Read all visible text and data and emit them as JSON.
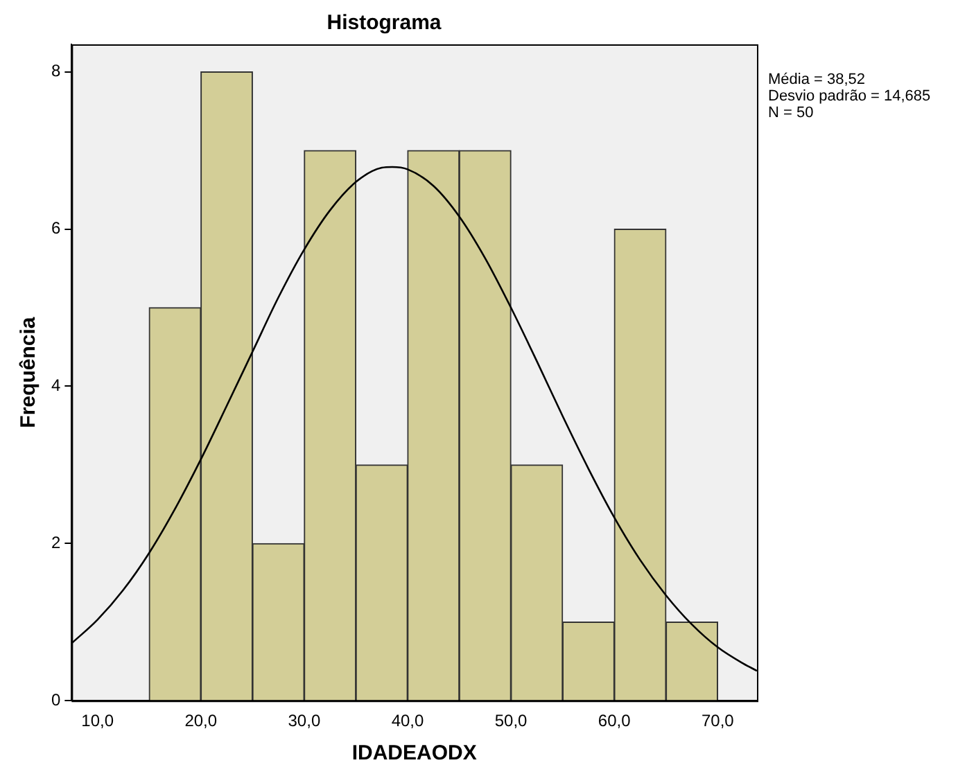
{
  "chart_data": {
    "type": "histogram",
    "title": "Histograma",
    "xlabel": "IDADEAODX",
    "ylabel": "Frequência",
    "bins": [
      15,
      20,
      25,
      30,
      35,
      40,
      45,
      50,
      55,
      60,
      65,
      70
    ],
    "series": [
      {
        "type": "histogram",
        "color": "#d3ce97",
        "values": [
          5,
          8,
          2,
          7,
          3,
          7,
          7,
          3,
          1,
          6,
          1
        ]
      },
      {
        "type": "line",
        "color": "#000000",
        "x": [
          7.5,
          10,
          12.5,
          15,
          17.5,
          20,
          22.5,
          25,
          27.5,
          30,
          32.5,
          35,
          37.5,
          38.52,
          40,
          42.5,
          45,
          47.5,
          50,
          52.5,
          55,
          57.5,
          60,
          62.5,
          65,
          67.5,
          70,
          72.5,
          73.8
        ],
        "values": [
          0.73,
          1.03,
          1.41,
          1.88,
          2.44,
          3.07,
          3.75,
          4.44,
          5.13,
          5.74,
          6.24,
          6.6,
          6.78,
          6.79,
          6.76,
          6.55,
          6.16,
          5.63,
          5.0,
          4.32,
          3.62,
          2.95,
          2.33,
          1.79,
          1.34,
          0.97,
          0.68,
          0.47,
          0.38
        ]
      }
    ],
    "xlim": [
      7.5,
      73.8
    ],
    "xticks": [
      {
        "value": 10,
        "label": "10,0"
      },
      {
        "value": 20,
        "label": "20,0"
      },
      {
        "value": 30,
        "label": "30,0"
      },
      {
        "value": 40,
        "label": "40,0"
      },
      {
        "value": 50,
        "label": "50,0"
      },
      {
        "value": 60,
        "label": "60,0"
      },
      {
        "value": 70,
        "label": "70,0"
      }
    ],
    "ylim": [
      0,
      8.35
    ],
    "yticks": [
      0,
      2,
      4,
      6,
      8
    ],
    "grid": false,
    "legend": false,
    "annotations": [
      "Média = 38,52",
      "Desvio padrão = 14,685",
      "N = 50"
    ]
  }
}
